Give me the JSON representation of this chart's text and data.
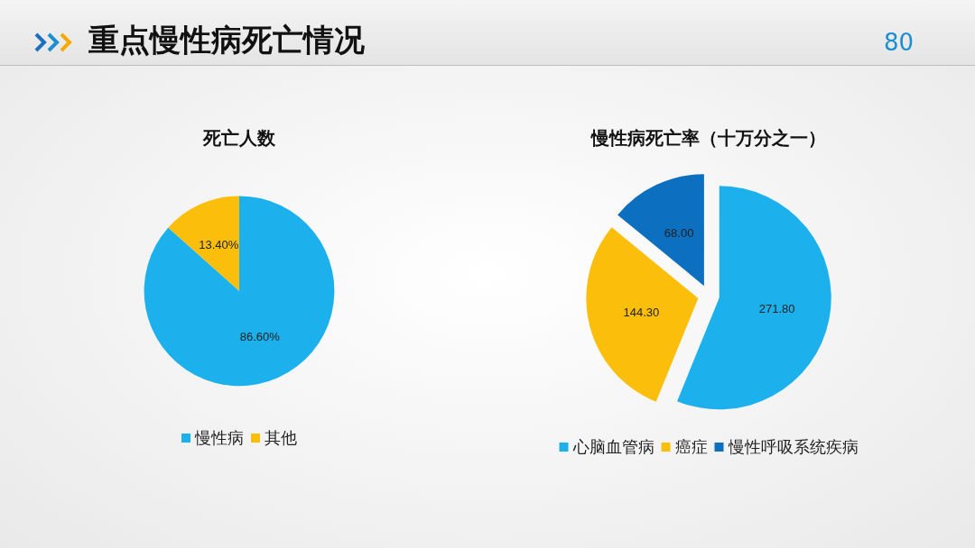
{
  "chart_data": [
    {
      "type": "pie",
      "title": "死亡人数",
      "categories": [
        "慢性病",
        "其他"
      ],
      "values": [
        86.6,
        13.4
      ],
      "colors": [
        "#1cb0ec",
        "#fbbf0b"
      ],
      "value_labels": [
        "86.60%",
        "13.40%"
      ],
      "legend": "bottom",
      "annotations": [
        "重点慢性病死亡情况",
        "80"
      ]
    },
    {
      "type": "pie",
      "title": "慢性病死亡率（十万分之一）",
      "categories": [
        "心脑血管病",
        "癌症",
        "慢性呼吸系统疾病"
      ],
      "values": [
        271.8,
        144.3,
        68.0
      ],
      "colors": [
        "#1cb0ec",
        "#fbbf0b",
        "#0c6fc0"
      ],
      "value_labels": [
        "271.80",
        "144.30",
        "68.00"
      ],
      "legend": "bottom"
    }
  ]
}
